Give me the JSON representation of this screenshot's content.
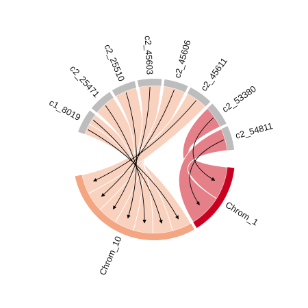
{
  "diagram": {
    "type": "chord",
    "sources": [
      {
        "label": "c1_8019"
      },
      {
        "label": "c2_25471"
      },
      {
        "label": "c2_25510"
      },
      {
        "label": "c2_45603"
      },
      {
        "label": "c2_45606"
      },
      {
        "label": "c2_45611"
      },
      {
        "label": "c2_53380"
      },
      {
        "label": "c2_54811"
      }
    ],
    "targets": [
      {
        "label": "Chrom_10",
        "color": "#f4a582",
        "ribbon_color": "#f8d2bf"
      },
      {
        "label": "Chrom_1",
        "color": "#ca0020",
        "ribbon_color": "#e58088"
      }
    ],
    "source_color": "#bdbdbd",
    "links": [
      {
        "from": "c1_8019",
        "to": "Chrom_10"
      },
      {
        "from": "c1_8019",
        "to": "Chrom_10"
      },
      {
        "from": "c2_25471",
        "to": "Chrom_10"
      },
      {
        "from": "c2_25510",
        "to": "Chrom_10"
      },
      {
        "from": "c2_45603",
        "to": "Chrom_10"
      },
      {
        "from": "c2_45606",
        "to": "Chrom_10"
      },
      {
        "from": "c2_45611",
        "to": "Chrom_10"
      },
      {
        "from": "c2_53380",
        "to": "Chrom_1"
      },
      {
        "from": "c2_54811",
        "to": "Chrom_1"
      }
    ]
  }
}
